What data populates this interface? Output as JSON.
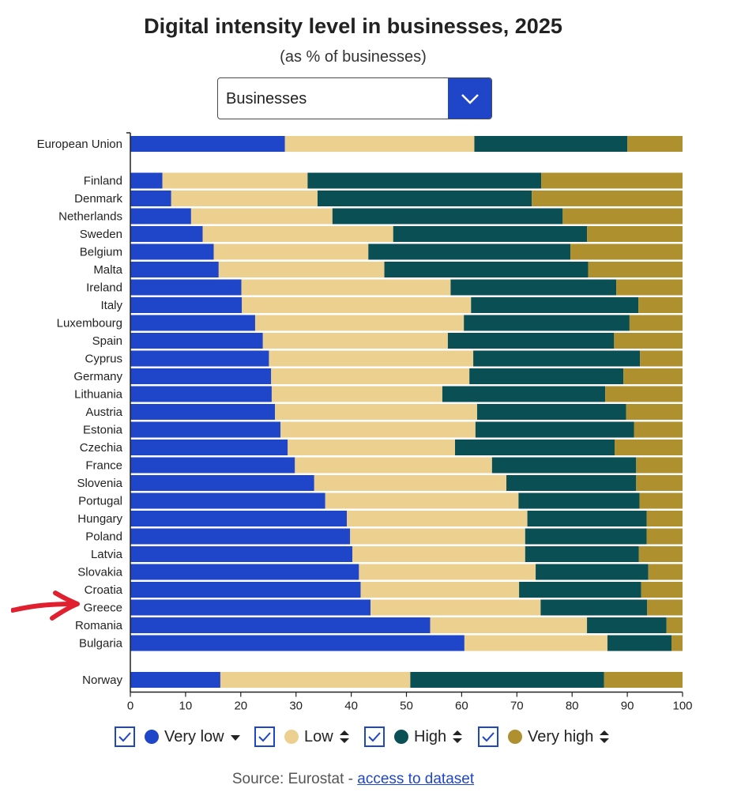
{
  "page": {
    "title": "Digital intensity level in businesses, 2025",
    "subtitle": "(as % of businesses)"
  },
  "dropdown": {
    "selected": "Businesses",
    "icon": "chevron-down-icon"
  },
  "colors": {
    "very_low": "#1f46c9",
    "low": "#ecd090",
    "high": "#0a4f54",
    "very_high": "#ae902f",
    "accent": "#1f46c9",
    "annotation": "#e0202f"
  },
  "legend": {
    "items": [
      {
        "key": "very_low",
        "label": "Very low",
        "sort": "sort-desc-icon"
      },
      {
        "key": "low",
        "label": "Low",
        "sort": "sort-icon"
      },
      {
        "key": "high",
        "label": "High",
        "sort": "sort-icon"
      },
      {
        "key": "very_high",
        "label": "Very high",
        "sort": "sort-icon"
      }
    ]
  },
  "source": {
    "prefix": "Source: Eurostat - ",
    "link": "access to dataset"
  },
  "annotation": {
    "icon": "red-arrow-icon",
    "points_to": "Greece"
  },
  "chart_data": {
    "type": "bar",
    "orientation": "horizontal",
    "stacked": true,
    "title": "Digital intensity level in businesses, 2025",
    "subtitle": "(as % of businesses)",
    "xlim": [
      0,
      100
    ],
    "xticks": [
      0,
      10,
      20,
      30,
      40,
      50,
      60,
      70,
      80,
      90,
      100
    ],
    "grid": false,
    "legend_position": "bottom",
    "groups": [
      [
        "European Union"
      ],
      [
        "Finland",
        "Denmark",
        "Netherlands",
        "Sweden",
        "Belgium",
        "Malta",
        "Ireland",
        "Italy",
        "Luxembourg",
        "Spain",
        "Cyprus",
        "Germany",
        "Lithuania",
        "Austria",
        "Estonia",
        "Czechia",
        "France",
        "Slovenia",
        "Portugal",
        "Hungary",
        "Poland",
        "Latvia",
        "Slovakia",
        "Croatia",
        "Greece",
        "Romania",
        "Bulgaria"
      ],
      [
        "Norway"
      ]
    ],
    "series": [
      {
        "name": "Very low",
        "key": "very_low",
        "values": [
          28.0,
          5.8,
          7.4,
          11.0,
          13.1,
          15.1,
          16.0,
          20.1,
          20.2,
          22.6,
          24.0,
          25.1,
          25.5,
          25.6,
          26.2,
          27.2,
          28.5,
          29.8,
          33.3,
          35.3,
          39.2,
          39.8,
          40.2,
          41.4,
          41.7,
          43.5,
          54.3,
          60.5,
          16.3
        ]
      },
      {
        "name": "Low",
        "key": "low",
        "values": [
          34.3,
          26.3,
          26.5,
          25.6,
          34.5,
          28.0,
          30.0,
          37.9,
          41.5,
          37.8,
          33.5,
          37.0,
          35.9,
          30.9,
          36.6,
          35.3,
          30.3,
          35.7,
          34.8,
          35.0,
          32.7,
          31.7,
          31.3,
          32.0,
          28.7,
          30.8,
          28.4,
          25.9,
          34.4
        ]
      },
      {
        "name": "High",
        "key": "high",
        "values": [
          27.7,
          42.3,
          38.8,
          41.7,
          35.1,
          36.6,
          36.9,
          30.0,
          30.3,
          30.0,
          30.1,
          30.2,
          27.9,
          29.5,
          27.0,
          28.7,
          28.9,
          26.1,
          23.5,
          21.9,
          21.6,
          22.0,
          20.6,
          20.4,
          22.1,
          19.3,
          14.4,
          11.6,
          35.1
        ]
      },
      {
        "name": "Very high",
        "key": "very_high",
        "values": [
          10.0,
          25.6,
          27.3,
          21.7,
          17.3,
          20.3,
          17.1,
          12.0,
          8.0,
          9.6,
          12.4,
          7.7,
          10.7,
          14.0,
          10.2,
          8.8,
          12.3,
          8.4,
          8.4,
          7.8,
          6.5,
          6.5,
          7.9,
          6.2,
          7.5,
          6.4,
          2.9,
          2.0,
          14.2
        ]
      }
    ]
  }
}
